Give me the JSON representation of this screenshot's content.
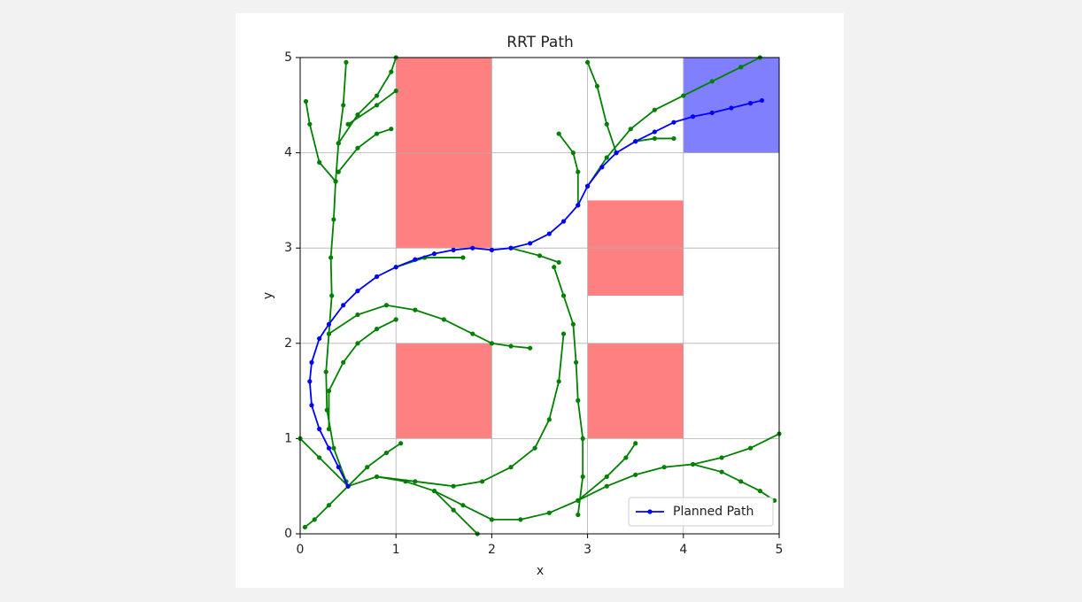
{
  "chart_data": {
    "type": "line",
    "title": "RRT Path",
    "xlabel": "x",
    "ylabel": "y",
    "xlim": [
      0,
      5
    ],
    "ylim": [
      0,
      5
    ],
    "xticks": [
      0,
      1,
      2,
      3,
      4,
      5
    ],
    "yticks": [
      0,
      1,
      2,
      3,
      4,
      5
    ],
    "grid": true,
    "legend": "lower right",
    "rectangles": [
      {
        "x": 1,
        "y": 3,
        "width": 1,
        "height": 2,
        "color": "#ff8080"
      },
      {
        "x": 1,
        "y": 1,
        "width": 1,
        "height": 1,
        "color": "#ff8080"
      },
      {
        "x": 3,
        "y": 2.5,
        "width": 1,
        "height": 1,
        "color": "#ff8080"
      },
      {
        "x": 3,
        "y": 1,
        "width": 1,
        "height": 1,
        "color": "#ff8080"
      },
      {
        "x": 4,
        "y": 4,
        "width": 1,
        "height": 1,
        "color": "#8080ff"
      }
    ],
    "series": [
      {
        "color": "green",
        "x": [
          0.48,
          0.35,
          0.28,
          0.27,
          0.3,
          0.33,
          0.32,
          0.35,
          0.37,
          0.4,
          0.45,
          0.48
        ],
        "values": [
          0.55,
          0.9,
          1.3,
          1.7,
          2.1,
          2.5,
          2.9,
          3.3,
          3.7,
          4.1,
          4.5,
          4.95
        ]
      },
      {
        "color": "green",
        "x": [
          0.37,
          0.2,
          0.1,
          0.06
        ],
        "values": [
          3.7,
          3.9,
          4.3,
          4.54
        ]
      },
      {
        "color": "green",
        "x": [
          0.4,
          0.6,
          0.8,
          0.95
        ],
        "values": [
          3.8,
          4.05,
          4.2,
          4.25
        ]
      },
      {
        "color": "green",
        "x": [
          0.4,
          0.6,
          0.8,
          0.95,
          1.0
        ],
        "values": [
          4.1,
          4.4,
          4.6,
          4.85,
          5.0
        ]
      },
      {
        "color": "green",
        "x": [
          0.5,
          0.8,
          1.0
        ],
        "values": [
          4.3,
          4.5,
          4.65
        ]
      },
      {
        "color": "green",
        "x": [
          0.3,
          0.6,
          0.9,
          1.2,
          1.5,
          1.8,
          2.0,
          2.2,
          2.4
        ],
        "values": [
          2.1,
          2.3,
          2.4,
          2.35,
          2.25,
          2.1,
          2.0,
          1.97,
          1.95
        ]
      },
      {
        "color": "green",
        "x": [
          0.3,
          0.3,
          0.45,
          0.6,
          0.8,
          1.0
        ],
        "values": [
          1.1,
          1.5,
          1.8,
          2.0,
          2.15,
          2.25
        ]
      },
      {
        "color": "green",
        "x": [
          0.5,
          0.8,
          1.1,
          1.4,
          1.7,
          2.0,
          2.3,
          2.6,
          2.9,
          3.2,
          3.5,
          3.8,
          4.1,
          4.4,
          4.7,
          5.0
        ],
        "values": [
          0.5,
          0.6,
          0.55,
          0.45,
          0.3,
          0.15,
          0.15,
          0.22,
          0.35,
          0.5,
          0.62,
          0.7,
          0.73,
          0.8,
          0.9,
          1.05
        ]
      },
      {
        "color": "green",
        "x": [
          4.1,
          4.4,
          4.6,
          4.8,
          4.95
        ],
        "values": [
          0.73,
          0.65,
          0.55,
          0.45,
          0.35
        ]
      },
      {
        "color": "green",
        "x": [
          0.8,
          1.2,
          1.6,
          1.9,
          2.2,
          2.45,
          2.6,
          2.7,
          2.75
        ],
        "values": [
          0.6,
          0.55,
          0.5,
          0.55,
          0.7,
          0.9,
          1.2,
          1.6,
          2.1
        ]
      },
      {
        "color": "green",
        "x": [
          2.9,
          2.95,
          2.95,
          2.9,
          2.88,
          2.85,
          2.75,
          2.65
        ],
        "values": [
          0.2,
          0.6,
          1.0,
          1.4,
          1.8,
          2.2,
          2.5,
          2.8
        ]
      },
      {
        "color": "green",
        "x": [
          0.5,
          0.7,
          0.9,
          1.05
        ],
        "values": [
          0.5,
          0.7,
          0.85,
          0.95
        ]
      },
      {
        "color": "green",
        "x": [
          0.5,
          0.3,
          0.15,
          0.05
        ],
        "values": [
          0.5,
          0.3,
          0.15,
          0.07
        ]
      },
      {
        "color": "green",
        "x": [
          0.5,
          0.2,
          0.0
        ],
        "values": [
          0.5,
          0.8,
          1.0
        ]
      },
      {
        "color": "green",
        "x": [
          3.0,
          3.2,
          3.45,
          3.7,
          4.0,
          4.3,
          4.6,
          4.8
        ],
        "values": [
          3.65,
          3.95,
          4.25,
          4.45,
          4.6,
          4.75,
          4.9,
          5.0
        ]
      },
      {
        "color": "green",
        "x": [
          2.9,
          2.9,
          2.85,
          2.7
        ],
        "values": [
          3.45,
          3.8,
          4.0,
          4.2
        ]
      },
      {
        "color": "green",
        "x": [
          3.3,
          3.2,
          3.1,
          3.0
        ],
        "values": [
          4.0,
          4.3,
          4.7,
          4.95
        ]
      },
      {
        "color": "green",
        "x": [
          2.2,
          2.5,
          2.7
        ],
        "values": [
          3.0,
          2.92,
          2.85
        ]
      },
      {
        "color": "green",
        "x": [
          1.0,
          1.3,
          1.7
        ],
        "values": [
          2.8,
          2.9,
          2.9
        ]
      },
      {
        "color": "green",
        "x": [
          3.5,
          3.7,
          3.9
        ],
        "values": [
          4.12,
          4.15,
          4.15
        ]
      },
      {
        "color": "green",
        "x": [
          1.4,
          1.6,
          1.85
        ],
        "values": [
          0.45,
          0.25,
          0.0
        ]
      },
      {
        "color": "green",
        "x": [
          2.9,
          3.2,
          3.4,
          3.5
        ],
        "values": [
          0.35,
          0.6,
          0.8,
          0.95
        ]
      },
      {
        "name": "Planned Path",
        "color": "blue",
        "x": [
          0.5,
          0.4,
          0.3,
          0.2,
          0.12,
          0.1,
          0.12,
          0.2,
          0.3,
          0.45,
          0.6,
          0.8,
          1.0,
          1.2,
          1.4,
          1.6,
          1.8,
          2.0,
          2.2,
          2.4,
          2.6,
          2.75,
          2.9,
          3.0,
          3.15,
          3.3,
          3.5,
          3.7,
          3.9,
          4.1,
          4.3,
          4.5,
          4.7,
          4.82
        ],
        "values": [
          0.5,
          0.7,
          0.9,
          1.1,
          1.35,
          1.6,
          1.8,
          2.05,
          2.2,
          2.4,
          2.55,
          2.7,
          2.8,
          2.88,
          2.94,
          2.98,
          3.0,
          2.98,
          3.0,
          3.05,
          3.15,
          3.28,
          3.45,
          3.65,
          3.85,
          4.0,
          4.12,
          4.22,
          4.32,
          4.38,
          4.42,
          4.47,
          4.52,
          4.55
        ]
      }
    ]
  }
}
